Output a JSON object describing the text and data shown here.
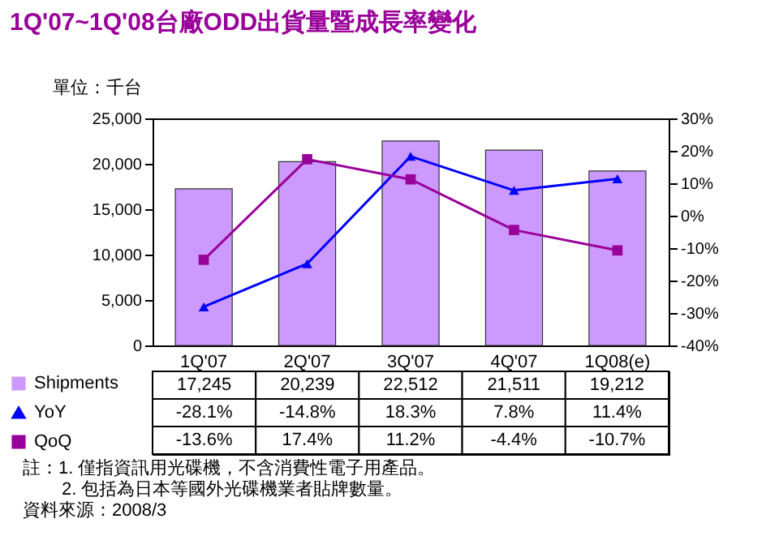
{
  "chart_data": {
    "type": "bar",
    "title": "1Q'07~1Q'08台廠ODD出貨量暨成長率變化",
    "ylabel": "單位：千台",
    "annotations": [
      "註：1. 僅指資訊用光碟機，不含消費性電子用產品。",
      "2. 包括為日本等國外光碟機業者貼牌數量。",
      "資料來源：2008/3"
    ],
    "categories": [
      "1Q'07",
      "2Q'07",
      "3Q'07",
      "4Q'07",
      "1Q08(e)"
    ],
    "series": [
      {
        "name": "Shipments",
        "color": "#cc99ff",
        "values": [
          17245,
          20239,
          22512,
          21511,
          19212
        ],
        "value_labels": [
          "17,245",
          "20,239",
          "22,512",
          "21,511",
          "19,212"
        ]
      },
      {
        "name": "YoY",
        "type": "line",
        "axis": "y2",
        "marker": "triangle",
        "color": "#0000ff",
        "values": [
          -28.1,
          -14.8,
          18.3,
          7.8,
          11.4
        ],
        "value_labels": [
          "-28.1%",
          "-14.8%",
          "18.3%",
          "7.8%",
          "11.4%"
        ]
      },
      {
        "name": "QoQ",
        "type": "line",
        "axis": "y2",
        "marker": "square",
        "color": "#990099",
        "values": [
          -13.6,
          17.4,
          11.2,
          -4.4,
          -10.7
        ],
        "value_labels": [
          "-13.6%",
          "17.4%",
          "11.2%",
          "-4.4%",
          "-10.7%"
        ]
      }
    ],
    "ylim": [
      0,
      25000
    ],
    "yticks": [
      {
        "value": 0,
        "label": "0"
      },
      {
        "value": 5000,
        "label": "5,000"
      },
      {
        "value": 10000,
        "label": "10,000"
      },
      {
        "value": 15000,
        "label": "15,000"
      },
      {
        "value": 20000,
        "label": "20,000"
      },
      {
        "value": 25000,
        "label": "25,000"
      }
    ],
    "y2lim": [
      -40,
      30
    ],
    "y2ticks": [
      {
        "value": -40,
        "label": "-40%"
      },
      {
        "value": -30,
        "label": "-30%"
      },
      {
        "value": -20,
        "label": "-20%"
      },
      {
        "value": -10,
        "label": "-10%"
      },
      {
        "value": 0,
        "label": "0%"
      },
      {
        "value": 10,
        "label": "10%"
      },
      {
        "value": 20,
        "label": "20%"
      },
      {
        "value": 30,
        "label": "30%"
      }
    ],
    "grid": false,
    "legend": "bottom left",
    "line_style": "solid"
  }
}
